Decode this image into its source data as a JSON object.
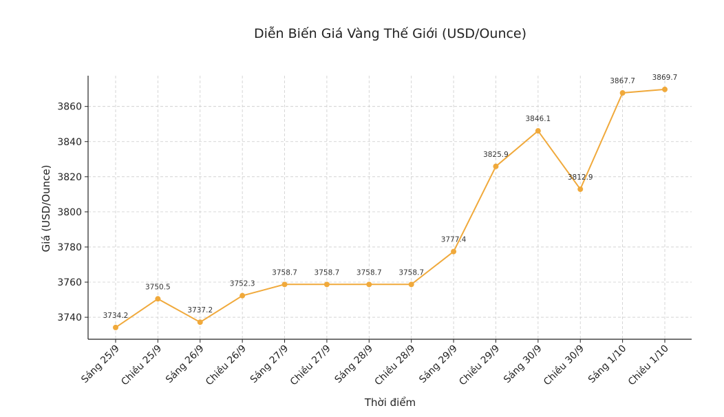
{
  "chart_data": {
    "type": "line",
    "title": "Diễn Biến Giá Vàng Thế Giới (USD/Ounce)",
    "xlabel": "Thời điểm",
    "ylabel": "Giá (USD/Ounce)",
    "categories": [
      "Sáng 25/9",
      "Chiều 25/9",
      "Sáng 26/9",
      "Chiều 26/9",
      "Sáng 27/9",
      "Chiều 27/9",
      "Sáng 28/9",
      "Chiều 28/9",
      "Sáng 29/9",
      "Chiều 29/9",
      "Sáng 30/9",
      "Chiều 30/9",
      "Sáng 1/10",
      "Chiều 1/10"
    ],
    "values": [
      3734.2,
      3750.5,
      3737.2,
      3752.3,
      3758.7,
      3758.7,
      3758.7,
      3758.7,
      3777.4,
      3825.9,
      3846.1,
      3812.9,
      3867.7,
      3869.7
    ],
    "data_labels": [
      "3734.2",
      "3750.5",
      "3737.2",
      "3752.3",
      "3758.7",
      "3758.7",
      "3758.7",
      "3758.7",
      "3777.4",
      "3825.9",
      "3846.1",
      "3812.9",
      "3867.7",
      "3869.7"
    ],
    "yticks": [
      3740,
      3760,
      3780,
      3800,
      3820,
      3840,
      3860
    ],
    "ylim": [
      3727.5,
      3877.5
    ],
    "grid": true,
    "color": "#f0a93b"
  }
}
